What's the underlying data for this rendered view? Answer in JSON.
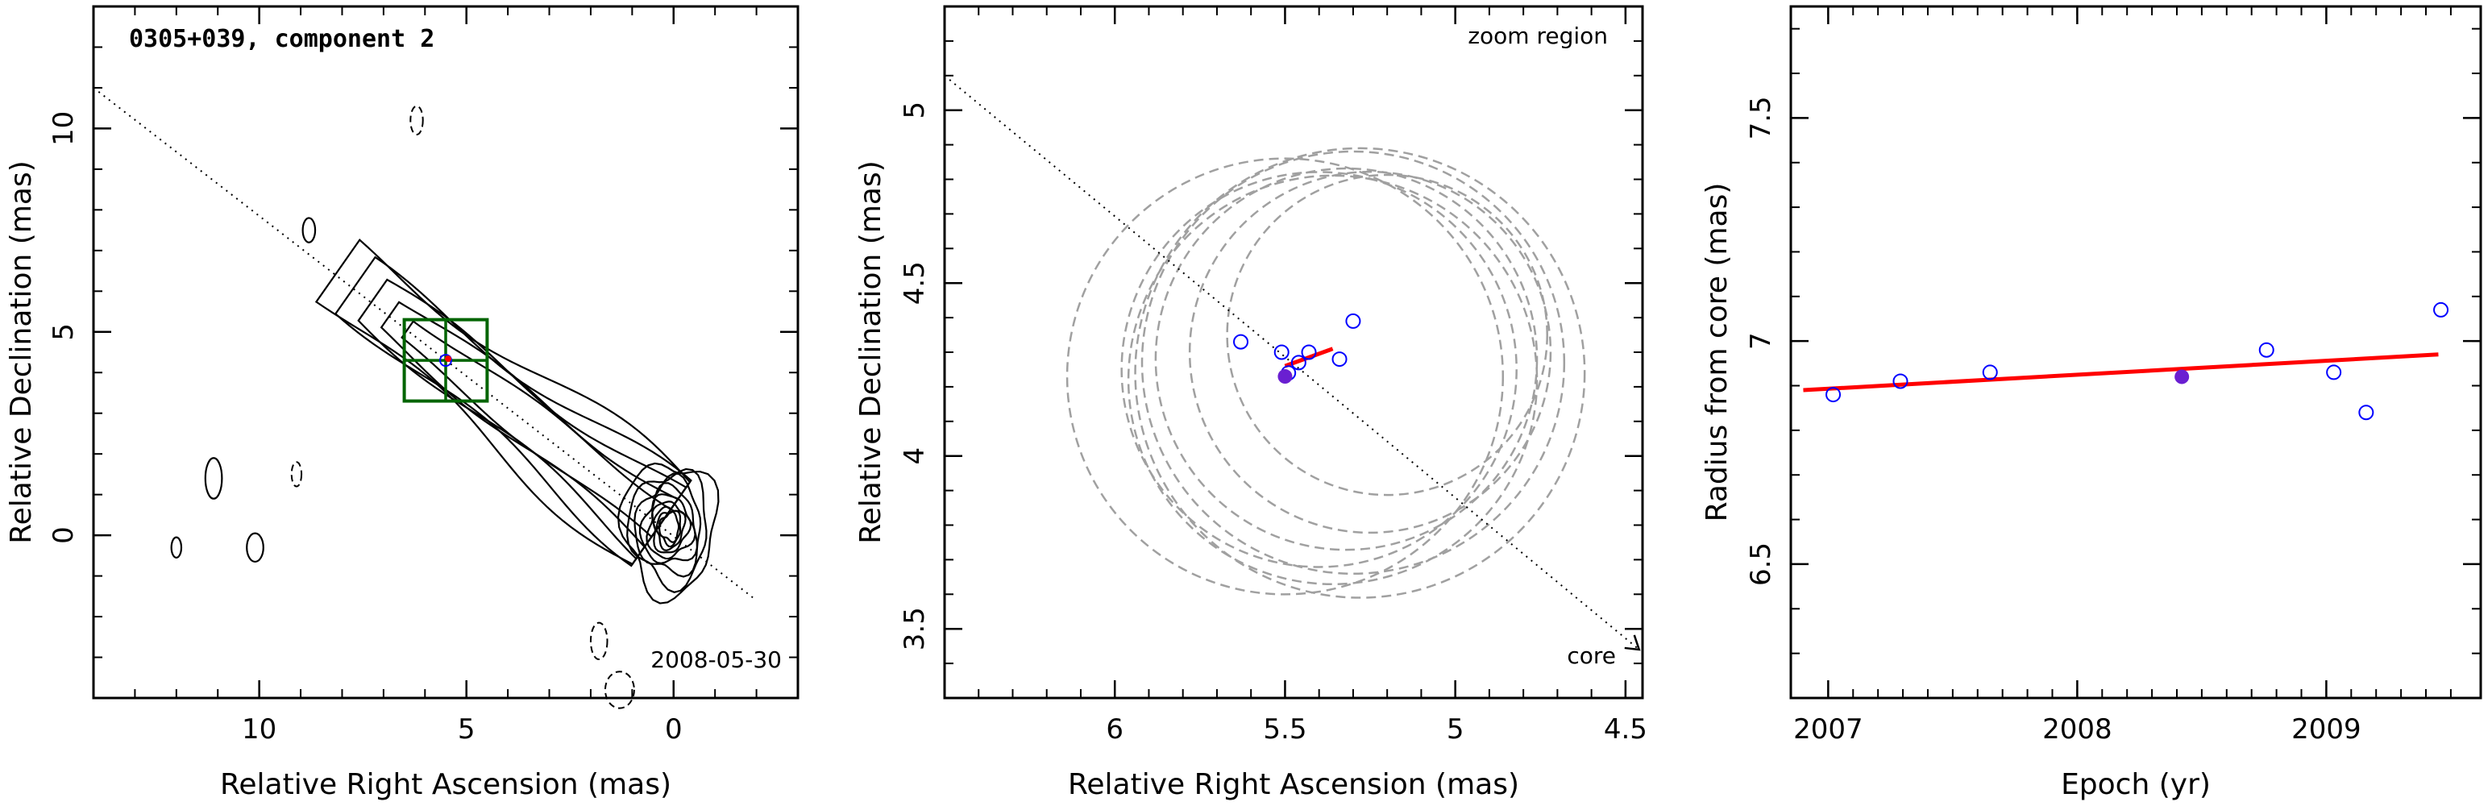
{
  "chart_data": [
    {
      "type": "scatter",
      "panel": "contour-map",
      "title": "0305+039, component 2",
      "date_label": "2008-05-30",
      "xlabel": "Relative Right Ascension (mas)",
      "ylabel": "Relative Declination (mas)",
      "xlim": [
        14,
        -3
      ],
      "ylim": [
        -4,
        13
      ],
      "xticks": [
        10,
        5,
        0
      ],
      "yticks": [
        10,
        5,
        0
      ],
      "core_position": [
        0,
        0
      ],
      "jet_axis_through": [
        [
          14,
          11
        ],
        [
          -2,
          -1.6
        ]
      ],
      "component": {
        "x": 5.5,
        "y": 4.3
      },
      "zoom_box": {
        "x": [
          6.5,
          4.5
        ],
        "y": [
          3.3,
          5.3
        ]
      },
      "colors": {
        "contour": "#000000",
        "box": "#006400",
        "component_open": "#0000ff",
        "component_fill": "#6a1fd1"
      }
    },
    {
      "type": "scatter",
      "panel": "zoom-region",
      "annotation_top": "zoom region",
      "annotation_bottom": "core",
      "xlabel": "Relative Right Ascension (mas)",
      "ylabel": "Relative Declination (mas)",
      "xlim": [
        6.5,
        4.45
      ],
      "ylim": [
        3.3,
        5.3
      ],
      "xticks": [
        6,
        5.5,
        5,
        4.5
      ],
      "yticks": [
        5,
        4.5,
        4,
        3.5
      ],
      "points": [
        {
          "x": 5.63,
          "y": 4.33
        },
        {
          "x": 5.51,
          "y": 4.3
        },
        {
          "x": 5.43,
          "y": 4.3
        },
        {
          "x": 5.46,
          "y": 4.27
        },
        {
          "x": 5.34,
          "y": 4.28
        },
        {
          "x": 5.3,
          "y": 4.39
        },
        {
          "x": 5.49,
          "y": 4.24
        }
      ],
      "highlight_point": {
        "x": 5.5,
        "y": 4.23
      },
      "fit_segment": [
        [
          5.5,
          4.26
        ],
        [
          5.36,
          4.31
        ]
      ],
      "error_circles": [
        {
          "cx": 5.5,
          "cy": 4.23,
          "r": 0.64
        },
        {
          "cx": 5.36,
          "cy": 4.22,
          "r": 0.6
        },
        {
          "cx": 5.32,
          "cy": 4.28,
          "r": 0.56
        },
        {
          "cx": 5.3,
          "cy": 4.27,
          "r": 0.62
        },
        {
          "cx": 5.25,
          "cy": 4.3,
          "r": 0.53
        },
        {
          "cx": 5.4,
          "cy": 4.25,
          "r": 0.58
        },
        {
          "cx": 5.28,
          "cy": 4.24,
          "r": 0.66
        },
        {
          "cx": 5.2,
          "cy": 4.35,
          "r": 0.47
        }
      ],
      "jet_line": [
        [
          6.5,
          5.1
        ],
        [
          4.46,
          3.44
        ]
      ],
      "colors": {
        "points": "#0000ff",
        "highlight": "#6a1fd1",
        "fit": "#ff0000",
        "circles": "#a0a0a0"
      }
    },
    {
      "type": "scatter",
      "panel": "radius-vs-epoch",
      "xlabel": "Epoch (yr)",
      "ylabel": "Radius from core (mas)",
      "xlim": [
        2006.85,
        2009.62
      ],
      "ylim": [
        6.2,
        7.75
      ],
      "xticks": [
        2007,
        2008,
        2009
      ],
      "yticks": [
        7.5,
        7,
        6.5
      ],
      "points": [
        {
          "x": 2007.02,
          "y": 6.88
        },
        {
          "x": 2007.29,
          "y": 6.91
        },
        {
          "x": 2007.65,
          "y": 6.93
        },
        {
          "x": 2008.76,
          "y": 6.98
        },
        {
          "x": 2009.03,
          "y": 6.93
        },
        {
          "x": 2009.16,
          "y": 6.84
        },
        {
          "x": 2009.46,
          "y": 7.07
        }
      ],
      "highlight_point": {
        "x": 2008.42,
        "y": 6.92
      },
      "fit_line": [
        [
          2006.9,
          6.89
        ],
        [
          2009.45,
          6.97
        ]
      ],
      "colors": {
        "points": "#0000ff",
        "highlight": "#6a1fd1",
        "fit": "#ff0000"
      }
    }
  ]
}
